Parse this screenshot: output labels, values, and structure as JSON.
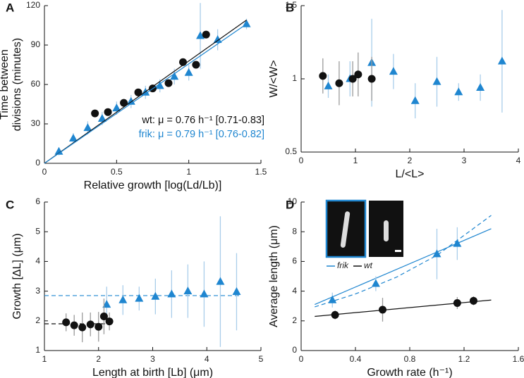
{
  "chart_data": [
    {
      "type": "scatter",
      "label": "A",
      "xlabel": "Relative growth [log(Ld/Lb)]",
      "ylabel": [
        "Time between",
        "divisions (minutes)"
      ],
      "xlim": [
        0,
        1.5
      ],
      "xticks": [
        0,
        0.5,
        1,
        1.5
      ],
      "ylim": [
        0,
        120
      ],
      "yticks": [
        0,
        30,
        60,
        90,
        120
      ],
      "annotations": [
        "wt: μ = 0.76 h⁻¹ [0.71-0.83]",
        "frik: μ = 0.79 h⁻¹ [0.76-0.82]"
      ],
      "series": [
        {
          "color": "#1f86d0",
          "error_color": "#a9cdea",
          "marker": "triangle",
          "x": [
            0.1,
            0.2,
            0.3,
            0.4,
            0.5,
            0.6,
            0.7,
            0.8,
            0.9,
            1.0,
            1.08,
            1.2,
            1.4
          ],
          "values": [
            9,
            19,
            27,
            34,
            42,
            47,
            54,
            59,
            66,
            69,
            97,
            94,
            106
          ],
          "errors": [
            3,
            4,
            5,
            5,
            5,
            5,
            5,
            5,
            6,
            6,
            25,
            8,
            4
          ]
        },
        {
          "color": "#111111",
          "error_color": "#9a9a9a",
          "marker": "circle",
          "x": [
            0.35,
            0.44,
            0.55,
            0.65,
            0.75,
            0.86,
            0.96,
            1.05,
            1.12
          ],
          "values": [
            38,
            39,
            46,
            54,
            57,
            61,
            77,
            75,
            98
          ],
          "errors": [
            0,
            0,
            0,
            0,
            0,
            0,
            0,
            0,
            0
          ]
        },
        {
          "color": "#111111",
          "marker": "line",
          "x": [
            0,
            1.4
          ],
          "values": [
            0,
            109
          ]
        },
        {
          "color": "#1f86d0",
          "marker": "line",
          "x": [
            0,
            1.4
          ],
          "values": [
            0,
            106
          ]
        }
      ]
    },
    {
      "type": "scatter",
      "label": "B",
      "xlabel": "L/<L>",
      "ylabel": [
        "W/<W>"
      ],
      "xlim": [
        0,
        4
      ],
      "xticks": [
        0,
        1,
        2,
        3,
        4
      ],
      "ylim": [
        0.5,
        1.5
      ],
      "yticks": [
        0.5,
        1,
        1.5
      ],
      "series": [
        {
          "color": "#1f86d0",
          "error_color": "#a9cdea",
          "marker": "triangle",
          "x": [
            0.5,
            0.9,
            1.3,
            1.7,
            2.1,
            2.5,
            2.9,
            3.3,
            3.7
          ],
          "values": [
            0.95,
            1.0,
            1.11,
            1.05,
            0.85,
            0.98,
            0.91,
            0.94,
            1.12
          ],
          "errors": [
            0.08,
            0.12,
            0.3,
            0.12,
            0.12,
            0.17,
            0.06,
            0.09,
            0.35
          ]
        },
        {
          "color": "#111111",
          "error_color": "#9a9a9a",
          "marker": "circle",
          "x": [
            0.4,
            0.7,
            0.95,
            1.05,
            1.3
          ],
          "values": [
            1.02,
            0.97,
            1.0,
            1.03,
            1.0
          ],
          "errors": [
            0.12,
            0.15,
            0.12,
            0.15,
            0.15
          ]
        }
      ]
    },
    {
      "type": "scatter",
      "label": "C",
      "xlabel": "Length at birth [Lb] (μm)",
      "ylabel": [
        "Growth [ΔL] (μm)"
      ],
      "xlim": [
        1,
        5
      ],
      "xticks": [
        1,
        2,
        3,
        4,
        5
      ],
      "ylim": [
        1,
        6
      ],
      "yticks": [
        1,
        2,
        3,
        4,
        5,
        6
      ],
      "series": [
        {
          "color": "#1f86d0",
          "marker": "line",
          "dashed": true,
          "x": [
            1,
            4.6
          ],
          "values": [
            2.85,
            2.85
          ]
        },
        {
          "color": "#111111",
          "marker": "line",
          "dashed": true,
          "x": [
            1,
            2.2
          ],
          "values": [
            1.9,
            1.9
          ]
        },
        {
          "color": "#1f86d0",
          "error_color": "#a9cdea",
          "marker": "triangle",
          "x": [
            2.15,
            2.45,
            2.75,
            3.05,
            3.35,
            3.65,
            3.95,
            4.25,
            4.55
          ],
          "values": [
            2.55,
            2.7,
            2.75,
            2.82,
            2.9,
            3.0,
            2.9,
            3.32,
            2.98
          ],
          "errors": [
            0.6,
            0.5,
            0.4,
            0.6,
            0.8,
            0.9,
            1.1,
            2.2,
            1.3
          ]
        },
        {
          "color": "#111111",
          "error_color": "#9a9a9a",
          "marker": "circle",
          "x": [
            1.4,
            1.55,
            1.7,
            1.85,
            2.0,
            2.1,
            2.2
          ],
          "values": [
            1.95,
            1.85,
            1.78,
            1.88,
            1.8,
            2.15,
            1.98
          ],
          "errors": [
            0.3,
            0.35,
            0.5,
            0.4,
            0.5,
            0.6,
            0.3
          ]
        }
      ]
    },
    {
      "type": "scatter",
      "label": "D",
      "xlabel": "Growth rate (h⁻¹)",
      "ylabel": [
        "Average length (μm)"
      ],
      "xlim": [
        0,
        1.6
      ],
      "xticks": [
        0,
        0.4,
        0.8,
        1.2,
        1.6
      ],
      "ylim": [
        0,
        10
      ],
      "yticks": [
        0,
        2,
        4,
        6,
        8,
        10
      ],
      "series": [
        {
          "name": "frik",
          "color": "#1f86d0",
          "marker": "line",
          "x": [
            0.1,
            1.4
          ],
          "values": [
            3.1,
            8.2
          ]
        },
        {
          "color": "#1f86d0",
          "marker": "line",
          "dashed": true,
          "x": [
            0.1,
            0.4,
            0.7,
            1.0,
            1.4
          ],
          "values": [
            2.94,
            3.81,
            4.93,
            6.41,
            9.1
          ]
        },
        {
          "name": "wt",
          "color": "#111111",
          "marker": "line",
          "x": [
            0.1,
            1.4
          ],
          "values": [
            2.3,
            3.4
          ]
        },
        {
          "color": "#1f86d0",
          "error_color": "#a9cdea",
          "marker": "triangle",
          "x": [
            0.23,
            0.55,
            1.0,
            1.15
          ],
          "values": [
            3.4,
            4.5,
            6.5,
            7.2
          ],
          "errors": [
            0.5,
            0.5,
            1.7,
            1.1
          ]
        },
        {
          "color": "#111111",
          "error_color": "#9a9a9a",
          "marker": "circle",
          "x": [
            0.25,
            0.6,
            1.15,
            1.27
          ],
          "values": [
            2.4,
            2.75,
            3.2,
            3.35
          ],
          "errors": [
            0.3,
            0.8,
            0.4,
            0.3
          ]
        }
      ]
    }
  ]
}
